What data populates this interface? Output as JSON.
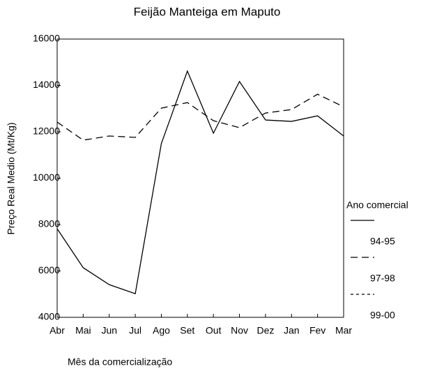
{
  "chart_data": {
    "type": "line",
    "title": "Feijão Manteiga em Maputo",
    "x_label": "Mês da comercialização",
    "y_label": "Preço Real Medio (Mt/Kg)",
    "legend_title": "Ano comercial",
    "categories": [
      "Abr",
      "Mai",
      "Jun",
      "Jul",
      "Ago",
      "Set",
      "Out",
      "Nov",
      "Dez",
      "Jan",
      "Fev",
      "Mar"
    ],
    "series": [
      {
        "name": "94-95",
        "color": "#000000",
        "dash": "solid",
        "values": [
          7820,
          6140,
          5410,
          5020,
          11490,
          14620,
          11940,
          14170,
          12510,
          12450,
          12690,
          11820
        ]
      },
      {
        "name": "97-98",
        "color": "#000000",
        "dash": "dashed",
        "values": [
          12420,
          11640,
          11820,
          11760,
          13020,
          13260,
          12480,
          12180,
          12810,
          12960,
          13620,
          13080
        ]
      },
      {
        "name": "99-00",
        "color": "#000000",
        "dash": "dotted",
        "values": [
          null,
          null,
          null,
          null,
          null,
          null,
          null,
          null,
          null,
          null,
          null,
          null
        ]
      }
    ],
    "ylim": [
      4000,
      16000
    ],
    "yticks": [
      4000,
      6000,
      8000,
      10000,
      12000,
      14000,
      16000
    ],
    "grid": false
  }
}
